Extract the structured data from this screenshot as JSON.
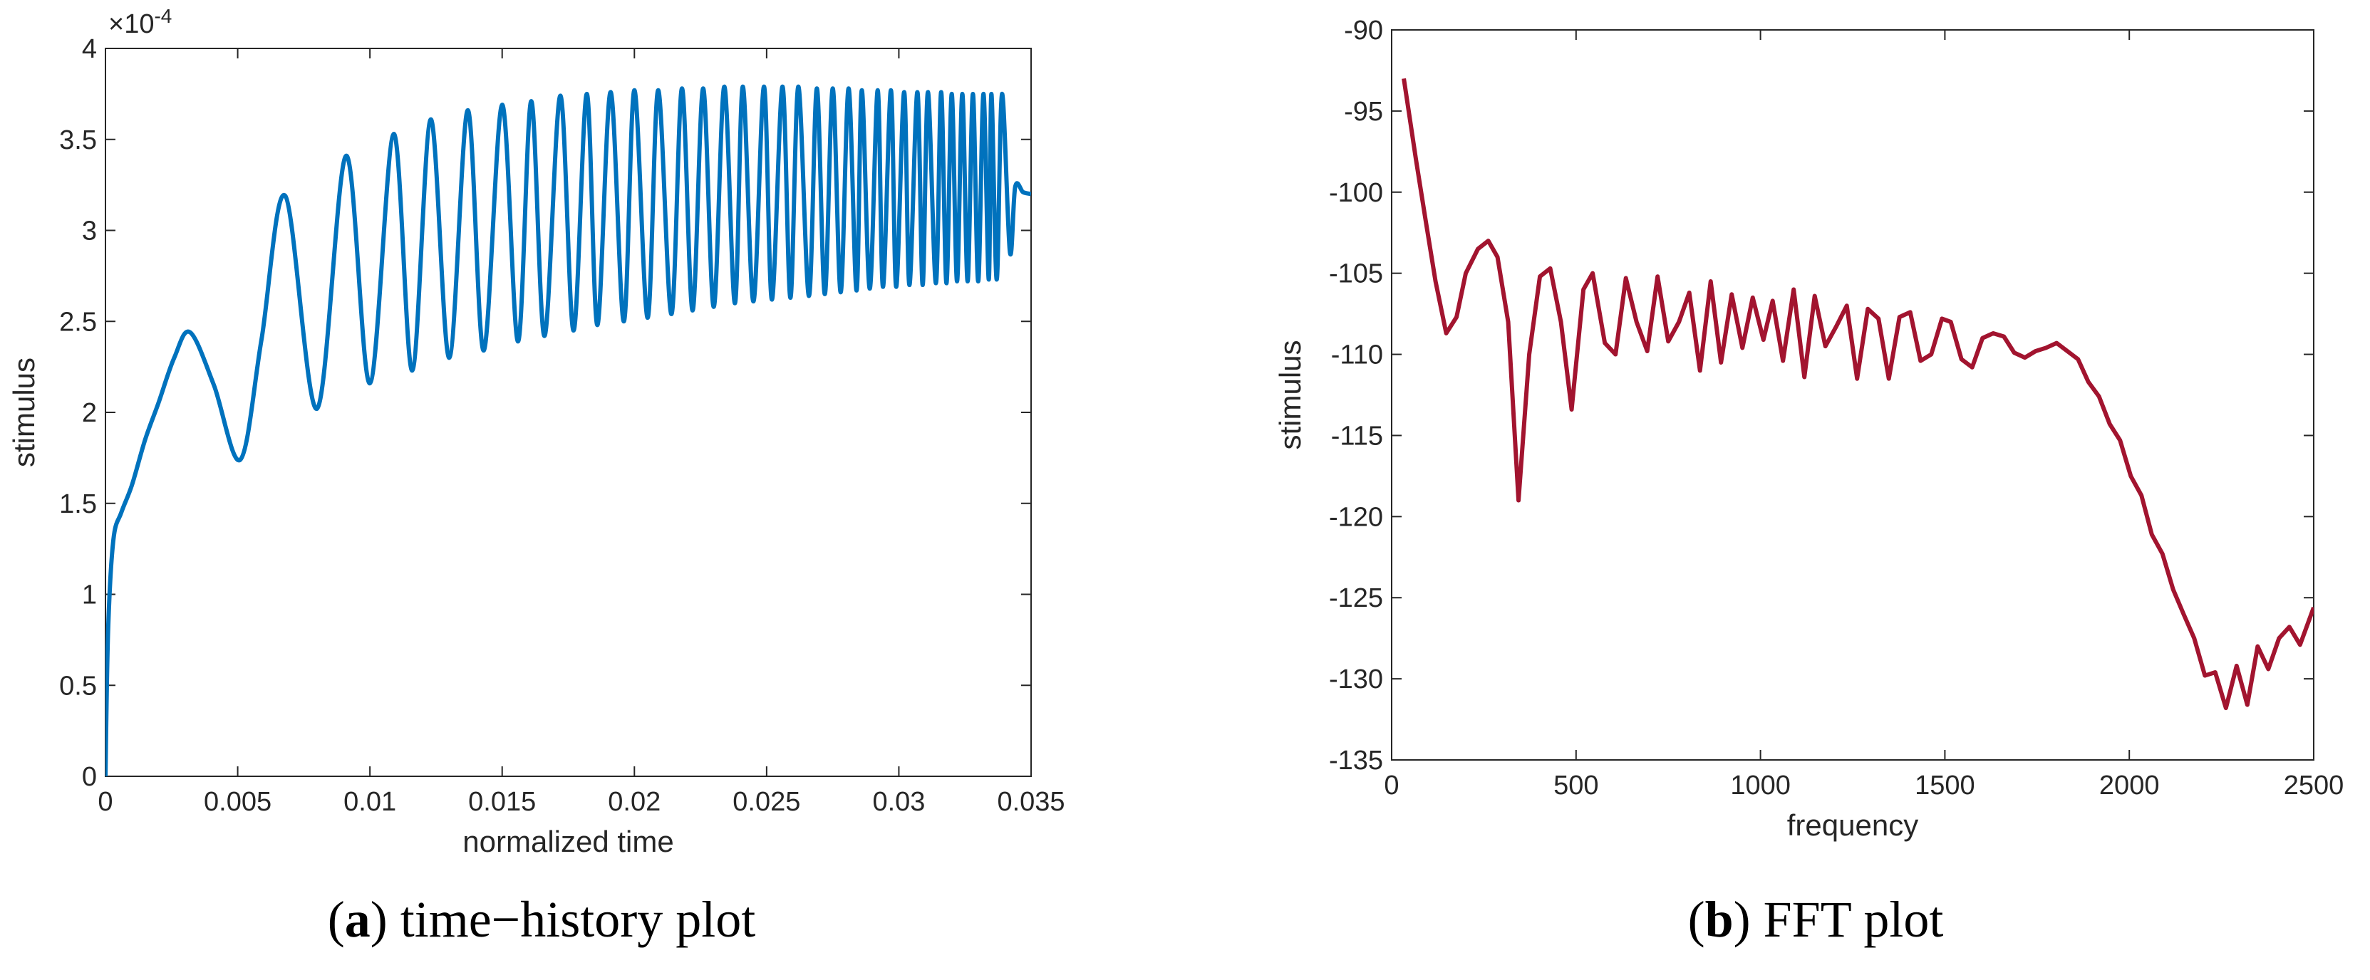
{
  "chart_data": [
    {
      "type": "line",
      "xlabel": "normalized time",
      "ylabel": "stimulus",
      "y_multiplier": {
        "base": "×10",
        "exponent": "-4"
      },
      "caption": {
        "open": "(",
        "label": "a",
        "close": ")",
        "text": "time−history plot"
      },
      "color": "#0072bd",
      "xlim": [
        0,
        0.035
      ],
      "xticks": [
        0,
        0.005,
        0.01,
        0.015,
        0.02,
        0.025,
        0.03,
        0.035
      ],
      "ylim": [
        0,
        4
      ],
      "yticks": [
        0,
        0.5,
        1,
        1.5,
        2,
        2.5,
        3,
        3.5,
        4
      ],
      "x": [
        0,
        0.0001,
        0.0003,
        0.0006,
        0.001,
        0.0015,
        0.002,
        0.0026,
        0.0032,
        0.0041,
        0.0051,
        0.0059,
        0.0068,
        0.008,
        0.0091,
        0.01,
        0.0109,
        0.0116,
        0.0123,
        0.013,
        0.0137,
        0.0143,
        0.015,
        0.0156,
        0.0161,
        0.0166,
        0.0172,
        0.0177,
        0.0182,
        0.0186,
        0.0191,
        0.0196,
        0.02,
        0.0205,
        0.0209,
        0.0214,
        0.0218,
        0.0222,
        0.0226,
        0.023,
        0.0234,
        0.0238,
        0.0241,
        0.0245,
        0.0249,
        0.0252,
        0.0256,
        0.0259,
        0.0262,
        0.0266,
        0.0269,
        0.0272,
        0.0275,
        0.0278,
        0.0281,
        0.0284,
        0.0286,
        0.0289,
        0.0292,
        0.0294,
        0.0297,
        0.0299,
        0.0302,
        0.0304,
        0.0307,
        0.0309,
        0.0311,
        0.0314,
        0.0316,
        0.0318,
        0.032,
        0.0322,
        0.0324,
        0.0326,
        0.0328,
        0.033,
        0.0332,
        0.0334,
        0.0335,
        0.0337,
        0.0339,
        0.0342,
        0.0344,
        0.0347,
        0.035
      ],
      "values": [
        0,
        0.8,
        1.3,
        1.45,
        1.6,
        1.85,
        2.05,
        2.3,
        2.44,
        2.15,
        1.74,
        2.4,
        3.19,
        2.02,
        3.41,
        2.16,
        3.53,
        2.23,
        3.61,
        2.3,
        3.66,
        2.34,
        3.69,
        2.39,
        3.71,
        2.42,
        3.74,
        2.45,
        3.75,
        2.48,
        3.76,
        2.5,
        3.77,
        2.52,
        3.77,
        2.54,
        3.78,
        2.56,
        3.78,
        2.58,
        3.79,
        2.6,
        3.79,
        2.61,
        3.79,
        2.62,
        3.79,
        2.63,
        3.79,
        2.64,
        3.78,
        2.65,
        3.78,
        2.66,
        3.78,
        2.67,
        3.77,
        2.68,
        3.77,
        2.69,
        3.77,
        2.69,
        3.76,
        2.7,
        3.76,
        2.7,
        3.76,
        2.71,
        3.76,
        2.71,
        3.75,
        2.72,
        3.75,
        2.72,
        3.75,
        2.72,
        3.75,
        2.73,
        3.75,
        2.73,
        3.75,
        2.88,
        3.24,
        3.21,
        3.2
      ]
    },
    {
      "type": "line",
      "xlabel": "frequency",
      "ylabel": "stimulus",
      "caption": {
        "open": "(",
        "label": "b",
        "close": ")",
        "text": "FFT plot"
      },
      "color": "#a2142f",
      "xlim": [
        0,
        2500
      ],
      "xticks": [
        0,
        500,
        1000,
        1500,
        2000,
        2500
      ],
      "ylim": [
        -135,
        -90
      ],
      "yticks": [
        -90,
        -95,
        -100,
        -105,
        -110,
        -115,
        -120,
        -125,
        -130,
        -135
      ],
      "x": [
        33,
        66,
        94,
        119,
        148,
        176,
        201,
        234,
        262,
        287,
        316,
        344,
        373,
        402,
        430,
        459,
        488,
        520,
        545,
        578,
        607,
        635,
        664,
        693,
        721,
        750,
        779,
        807,
        836,
        865,
        893,
        922,
        951,
        979,
        1008,
        1033,
        1061,
        1090,
        1119,
        1147,
        1176,
        1205,
        1234,
        1262,
        1291,
        1320,
        1348,
        1377,
        1406,
        1434,
        1463,
        1492,
        1516,
        1545,
        1574,
        1602,
        1631,
        1660,
        1688,
        1717,
        1746,
        1774,
        1803,
        1832,
        1861,
        1889,
        1918,
        1947,
        1975,
        2004,
        2033,
        2061,
        2090,
        2119,
        2147,
        2176,
        2205,
        2233,
        2262,
        2291,
        2320,
        2348,
        2377,
        2406,
        2434,
        2463,
        2500
      ],
      "values": [
        -93,
        -98,
        -102,
        -105.5,
        -108.7,
        -107.7,
        -105,
        -103.5,
        -103,
        -104,
        -108,
        -119,
        -110,
        -105.2,
        -104.7,
        -108,
        -113.4,
        -106,
        -105,
        -109.3,
        -110,
        -105.3,
        -108,
        -109.8,
        -105.2,
        -109.2,
        -108,
        -106.2,
        -111,
        -105.5,
        -110.5,
        -106.3,
        -109.6,
        -106.5,
        -109.1,
        -106.7,
        -110.4,
        -106,
        -111.4,
        -106.4,
        -109.5,
        -108.3,
        -107,
        -111.5,
        -107.2,
        -107.8,
        -111.5,
        -107.7,
        -107.4,
        -110.4,
        -110,
        -107.8,
        -108,
        -110.3,
        -110.8,
        -109,
        -108.7,
        -108.9,
        -109.9,
        -110.2,
        -109.8,
        -109.6,
        -109.3,
        -109.8,
        -110.3,
        -111.7,
        -112.6,
        -114.3,
        -115.3,
        -117.5,
        -118.7,
        -121.1,
        -122.3,
        -124.5,
        -126,
        -127.5,
        -129.8,
        -129.6,
        -131.8,
        -129.2,
        -131.6,
        -128,
        -129.4,
        -127.5,
        -126.8,
        -127.9,
        -125.6
      ]
    }
  ]
}
